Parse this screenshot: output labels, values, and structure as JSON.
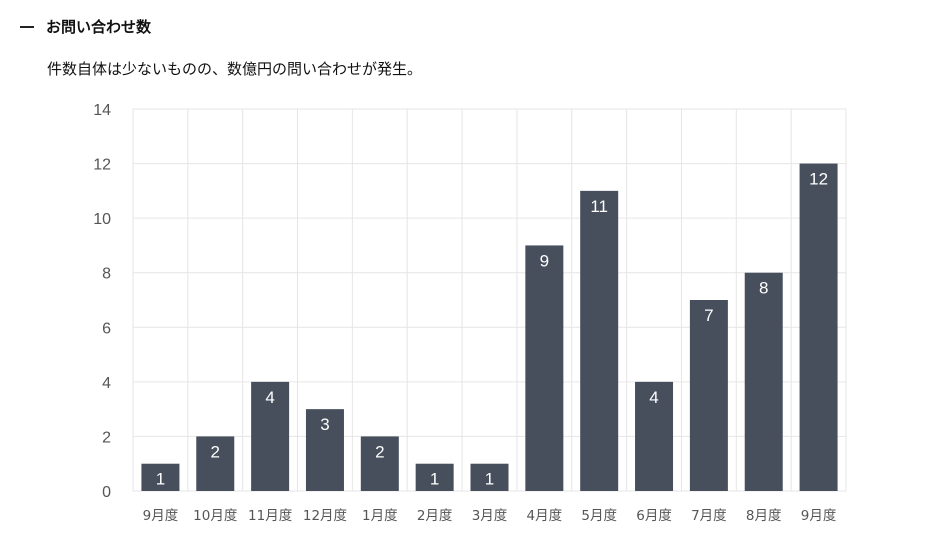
{
  "header": {
    "title": "お問い合わせ数"
  },
  "subtitle": "件数自体は少ないものの、数億円の問い合わせが発生。",
  "colors": {
    "bar": "#474f5c",
    "grid": "#e6e6e6",
    "tick_text": "#555555",
    "bar_label_text": "#ffffff"
  },
  "chart_data": {
    "type": "bar",
    "categories": [
      "9月度",
      "10月度",
      "11月度",
      "12月度",
      "1月度",
      "2月度",
      "3月度",
      "4月度",
      "5月度",
      "6月度",
      "7月度",
      "8月度",
      "9月度"
    ],
    "values": [
      1,
      2,
      4,
      3,
      2,
      1,
      1,
      9,
      11,
      4,
      7,
      8,
      12
    ],
    "ylim": [
      0,
      14
    ],
    "yticks": [
      0,
      2,
      4,
      6,
      8,
      10,
      12,
      14
    ],
    "grid": true,
    "data_labels": true
  }
}
